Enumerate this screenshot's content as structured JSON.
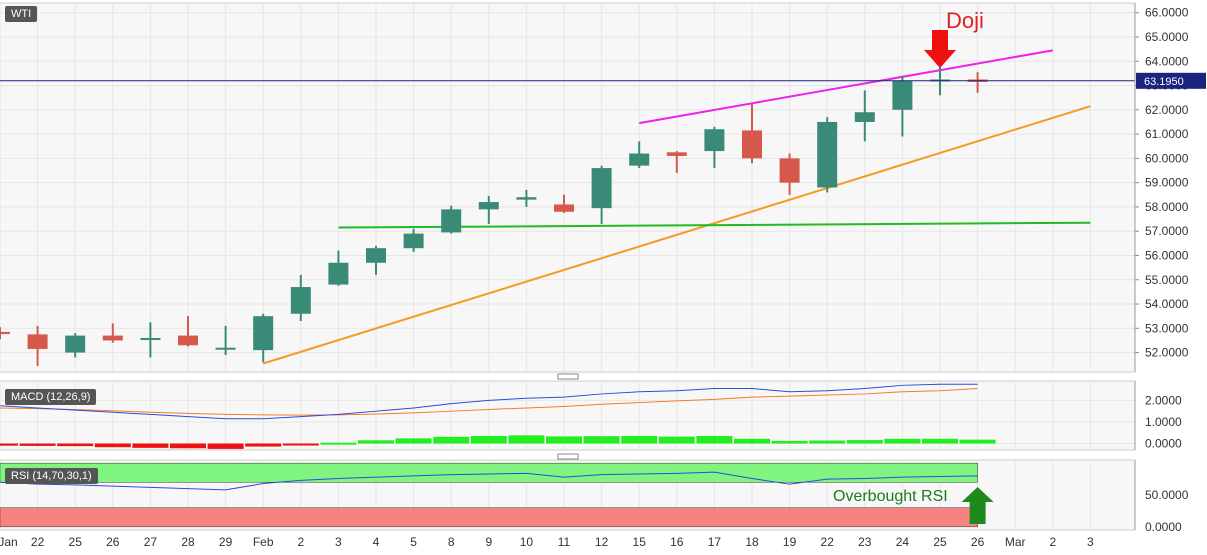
{
  "symbol": "WTI",
  "price_label": "63.1950",
  "colors": {
    "bull": "#3a8a78",
    "bear": "#d6584a",
    "resistance": "#ee22ee",
    "support": "#f59b1f",
    "horizontal": "#22bb22",
    "macd_line": "#2a4ed8",
    "signal_line": "#f57c2a",
    "hist_pos": "#22ee22",
    "hist_neg": "#ee1111",
    "rsi_upper_zone": "#7ff57f",
    "rsi_lower_zone": "#f78282",
    "arrow_red": "#ee1111",
    "arrow_green": "#1e8a1e",
    "price_line": "#1a237e",
    "badge_bg": "#1a237e"
  },
  "annotations": {
    "doji": "Doji",
    "overbought": "Overbought RSI"
  },
  "chart_data": [
    {
      "type": "candlestick",
      "title": "WTI",
      "categories": [
        "Jan 21",
        "22",
        "25",
        "26",
        "27",
        "28",
        "29",
        "Feb",
        "2",
        "3",
        "4",
        "5",
        "8",
        "9",
        "10",
        "11",
        "12",
        "15",
        "16",
        "17",
        "18",
        "19",
        "22",
        "23",
        "24",
        "25",
        "26"
      ],
      "ohlc": [
        [
          52.85,
          53.05,
          52.55,
          52.8
        ],
        [
          52.75,
          53.1,
          51.45,
          52.15
        ],
        [
          52.0,
          52.8,
          51.8,
          52.7
        ],
        [
          52.7,
          53.2,
          52.4,
          52.5
        ],
        [
          52.6,
          53.25,
          51.8,
          52.6
        ],
        [
          52.7,
          53.5,
          52.25,
          52.3
        ],
        [
          52.2,
          53.1,
          51.9,
          52.2
        ],
        [
          52.1,
          53.6,
          51.6,
          53.5
        ],
        [
          53.6,
          55.2,
          53.3,
          54.7
        ],
        [
          54.8,
          56.2,
          54.75,
          55.7
        ],
        [
          55.7,
          56.4,
          55.2,
          56.3
        ],
        [
          56.3,
          57.1,
          56.15,
          56.9
        ],
        [
          56.95,
          58.05,
          56.9,
          57.9
        ],
        [
          57.9,
          58.45,
          57.3,
          58.2
        ],
        [
          58.3,
          58.7,
          58.0,
          58.4
        ],
        [
          58.1,
          58.5,
          57.75,
          57.8
        ],
        [
          57.95,
          59.7,
          57.3,
          59.6
        ],
        [
          59.7,
          60.7,
          59.6,
          60.2
        ],
        [
          60.25,
          60.3,
          59.4,
          60.1
        ],
        [
          60.3,
          61.3,
          59.6,
          61.2
        ],
        [
          61.15,
          62.25,
          59.8,
          60.0
        ],
        [
          60.0,
          60.2,
          58.5,
          59.0
        ],
        [
          58.8,
          61.7,
          58.6,
          61.5
        ],
        [
          61.5,
          62.8,
          60.7,
          61.9
        ],
        [
          62.0,
          63.4,
          60.9,
          63.2
        ],
        [
          63.2,
          63.8,
          62.6,
          63.25
        ],
        [
          63.25,
          63.55,
          62.7,
          63.15
        ]
      ],
      "x_axis_labels": [
        "Jan",
        "22",
        "25",
        "26",
        "27",
        "28",
        "29",
        "Feb",
        "2",
        "3",
        "4",
        "5",
        "8",
        "9",
        "10",
        "11",
        "12",
        "15",
        "16",
        "17",
        "18",
        "19",
        "22",
        "23",
        "24",
        "25",
        "26",
        "Mar",
        "2",
        "3"
      ],
      "y_ticks": [
        "52.0000",
        "53.0000",
        "54.0000",
        "55.0000",
        "56.0000",
        "57.0000",
        "58.0000",
        "59.0000",
        "60.0000",
        "61.0000",
        "62.0000",
        "63.0000",
        "64.0000",
        "65.0000",
        "66.0000"
      ],
      "ylim": [
        51.2,
        66.4
      ],
      "current_price": 63.195,
      "trendlines": [
        {
          "kind": "resistance",
          "from": {
            "x": "15",
            "y": 61.45
          },
          "to": {
            "x": "Mar 2",
            "y": 64.45
          }
        },
        {
          "kind": "support",
          "from": {
            "x": "Feb",
            "y": 51.55
          },
          "to": {
            "x": "Mar 3",
            "y": 62.15
          }
        },
        {
          "kind": "horizontal",
          "from": {
            "x": "3",
            "y": 57.15
          },
          "to": {
            "x": "Mar 3",
            "y": 57.35
          }
        }
      ]
    },
    {
      "type": "bar+line",
      "title": "MACD (12,26,9)",
      "y_ticks": [
        "0.0000",
        "1.0000",
        "2.0000"
      ],
      "ylim": [
        -0.3,
        2.9
      ],
      "macd": [
        1.75,
        1.65,
        1.55,
        1.45,
        1.35,
        1.25,
        1.15,
        1.15,
        1.25,
        1.35,
        1.5,
        1.65,
        1.85,
        2.0,
        2.1,
        2.15,
        2.3,
        2.4,
        2.45,
        2.55,
        2.55,
        2.4,
        2.45,
        2.55,
        2.7,
        2.75,
        2.75
      ],
      "signal": [
        1.65,
        1.62,
        1.58,
        1.52,
        1.45,
        1.4,
        1.35,
        1.33,
        1.32,
        1.33,
        1.37,
        1.42,
        1.5,
        1.58,
        1.65,
        1.72,
        1.82,
        1.9,
        1.98,
        2.05,
        2.15,
        2.2,
        2.25,
        2.3,
        2.4,
        2.45,
        2.55
      ],
      "histogram": [
        -0.1,
        -0.11,
        -0.12,
        -0.17,
        -0.2,
        -0.22,
        -0.25,
        -0.14,
        -0.05,
        0.04,
        0.15,
        0.24,
        0.31,
        0.35,
        0.38,
        0.33,
        0.34,
        0.35,
        0.32,
        0.35,
        0.22,
        0.12,
        0.14,
        0.16,
        0.22,
        0.22,
        0.18
      ]
    },
    {
      "type": "line",
      "title": "RSI (14,70,30,1)",
      "y_ticks": [
        "0.0000",
        "50.0000"
      ],
      "ylim": [
        -5,
        105
      ],
      "zones": [
        {
          "from": 70,
          "to": 100,
          "name": "overbought"
        },
        {
          "from": 0,
          "to": 30,
          "name": "oversold"
        }
      ],
      "rsi": [
        70,
        67,
        66,
        64,
        62,
        60,
        58,
        68,
        73,
        76,
        78,
        80,
        82,
        83,
        84,
        78,
        82,
        83,
        84,
        86,
        76,
        67,
        75,
        76,
        78,
        79,
        80
      ]
    }
  ]
}
